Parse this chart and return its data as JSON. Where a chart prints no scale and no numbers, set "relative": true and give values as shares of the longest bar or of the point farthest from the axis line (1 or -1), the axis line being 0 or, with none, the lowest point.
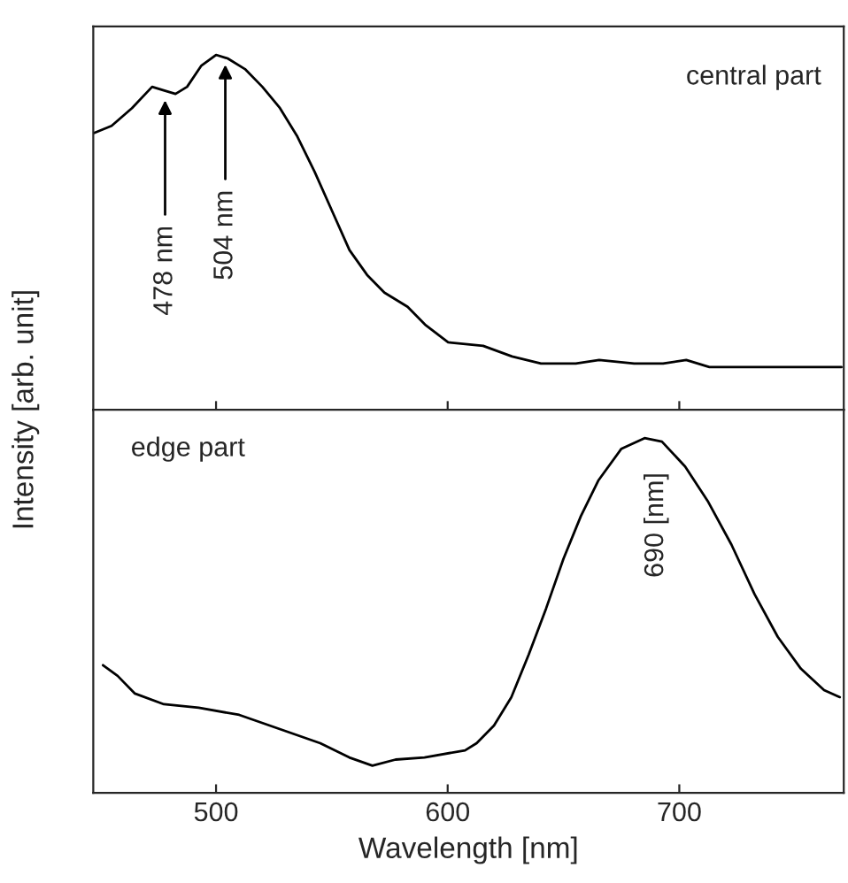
{
  "chart_data": [
    {
      "type": "line",
      "relative": true,
      "tick_labels": false,
      "xlim": [
        447,
        771
      ],
      "xticks": [
        500,
        600,
        700
      ],
      "x": [
        447.4,
        454.9,
        463.7,
        472.4,
        477.4,
        482.5,
        487.5,
        493.7,
        500,
        505,
        512.5,
        520,
        527.6,
        535.1,
        542.6,
        550.1,
        557.6,
        565.2,
        572.7,
        582.7,
        590.2,
        600.2,
        615.3,
        627.8,
        640.3,
        655.3,
        665.4,
        680.5,
        693,
        703,
        713,
        725.6,
        740.6,
        770
      ],
      "series": [
        {
          "color": "#000000",
          "values": [
            0.78,
            0.8,
            0.85,
            0.91,
            0.9,
            0.89,
            0.91,
            0.97,
            1.0,
            0.99,
            0.96,
            0.91,
            0.85,
            0.77,
            0.67,
            0.56,
            0.45,
            0.38,
            0.33,
            0.29,
            0.24,
            0.19,
            0.18,
            0.15,
            0.13,
            0.13,
            0.14,
            0.13,
            0.13,
            0.14,
            0.12,
            0.12,
            0.12,
            0.12
          ]
        }
      ],
      "annotations": [
        {
          "text": "478 nm",
          "x": 478,
          "y": 0.9
        },
        {
          "text": "504 nm",
          "x": 504,
          "y": 1.0
        },
        "central part"
      ]
    },
    {
      "type": "line",
      "relative": true,
      "tick_labels": "x",
      "xlim": [
        447,
        771
      ],
      "xticks": [
        500,
        600,
        700
      ],
      "xlabel": "Wavelength [nm]",
      "ylabel": "Intensity [arb. unit]",
      "x": [
        451.2,
        457.5,
        465,
        477.5,
        492.5,
        510,
        527.5,
        545,
        557.5,
        567.5,
        577.5,
        590,
        607.5,
        612.5,
        620,
        627.5,
        635,
        642.5,
        650,
        657.5,
        665,
        675,
        685,
        692.5,
        702.5,
        712.5,
        722.5,
        732.5,
        742.5,
        752.5,
        762.5,
        769.3
      ],
      "series": [
        {
          "color": "#000000",
          "values": [
            0.36,
            0.33,
            0.28,
            0.25,
            0.24,
            0.22,
            0.18,
            0.14,
            0.1,
            0.077,
            0.094,
            0.1,
            0.12,
            0.14,
            0.19,
            0.27,
            0.39,
            0.52,
            0.66,
            0.78,
            0.88,
            0.97,
            1.0,
            0.99,
            0.92,
            0.82,
            0.7,
            0.56,
            0.44,
            0.35,
            0.29,
            0.27
          ]
        }
      ],
      "annotations": [
        "edge part",
        {
          "text": "690 [nm]",
          "x": 690,
          "y": 1.0
        }
      ]
    }
  ]
}
